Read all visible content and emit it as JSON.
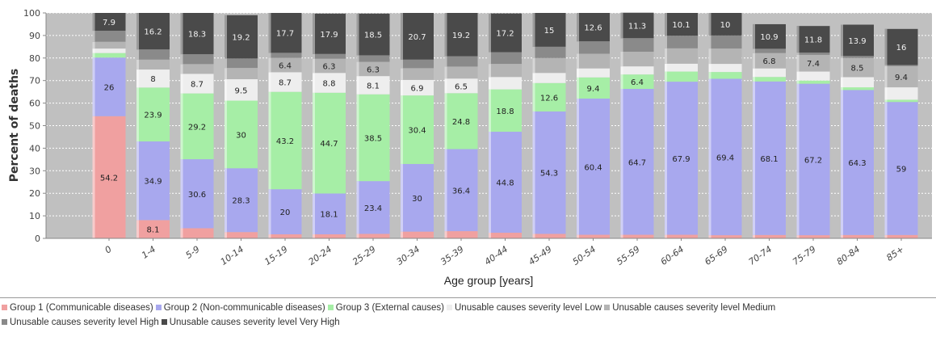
{
  "chart_data": {
    "type": "bar",
    "stacked": true,
    "title": "",
    "xlabel": "Age group [years]",
    "ylabel": "Percent of deaths",
    "ylim": [
      0,
      100
    ],
    "yticks": [
      0,
      10,
      20,
      30,
      40,
      50,
      60,
      70,
      80,
      90,
      100
    ],
    "grid": true,
    "legend_position": "bottom",
    "categories": [
      "0",
      "1-4",
      "5-9",
      "10-14",
      "15-19",
      "20-24",
      "25-29",
      "30-34",
      "35-39",
      "40-44",
      "45-49",
      "50-54",
      "55-59",
      "60-64",
      "65-69",
      "70-74",
      "75-79",
      "80-84",
      "85+"
    ],
    "series": [
      {
        "name": "Group 1 (Communicable diseases)",
        "color": "#f0a0a0",
        "values": [
          54.2,
          8.1,
          4.5,
          2.8,
          1.8,
          1.8,
          2.0,
          3.0,
          3.2,
          2.5,
          2.0,
          1.6,
          1.6,
          1.6,
          1.4,
          1.5,
          1.4,
          1.5,
          1.5
        ],
        "labels": [
          "54.2",
          "8.1",
          "",
          "",
          "",
          "",
          "",
          "",
          "",
          "",
          "",
          "",
          "",
          "",
          "",
          "",
          "",
          "",
          ""
        ]
      },
      {
        "name": "Group 2 (Non-communicable diseases)",
        "color": "#a8a8ee",
        "values": [
          26,
          34.9,
          30.6,
          28.3,
          20,
          18.1,
          23.4,
          30,
          36.4,
          44.8,
          54.3,
          60.4,
          64.7,
          67.9,
          69.4,
          68.1,
          67.2,
          64.3,
          59
        ],
        "labels": [
          "26",
          "34.9",
          "30.6",
          "28.3",
          "20",
          "18.1",
          "23.4",
          "30",
          "36.4",
          "44.8",
          "54.3",
          "60.4",
          "64.7",
          "67.9",
          "69.4",
          "68.1",
          "67.2",
          "64.3",
          "59"
        ]
      },
      {
        "name": "Group 3 (External causes)",
        "color": "#a6eea6",
        "values": [
          2.0,
          23.9,
          29.2,
          30,
          43.2,
          44.7,
          38.5,
          30.4,
          24.8,
          18.8,
          12.6,
          9.4,
          6.4,
          4.5,
          3.0,
          2.0,
          1.4,
          1.2,
          1.0
        ],
        "labels": [
          "",
          "23.9",
          "29.2",
          "30",
          "43.2",
          "44.7",
          "38.5",
          "30.4",
          "24.8",
          "18.8",
          "12.6",
          "9.4",
          "6.4",
          "",
          "",
          "",
          "",
          "",
          ""
        ]
      },
      {
        "name": "Unusable causes severity level Low",
        "color": "#eeeeee",
        "values": [
          2.0,
          8,
          8.7,
          9.5,
          8.7,
          8.8,
          8.1,
          6.9,
          6.5,
          5.5,
          4.5,
          4.0,
          3.6,
          3.5,
          3.6,
          3.8,
          4.0,
          4.5,
          5.5
        ],
        "labels": [
          "",
          "8",
          "8.7",
          "9.5",
          "8.7",
          "8.8",
          "8.1",
          "6.9",
          "6.5",
          "",
          "",
          "",
          "",
          "",
          "",
          "",
          "",
          "",
          ""
        ]
      },
      {
        "name": "Unusable causes severity level Medium",
        "color": "#b4b4b4",
        "values": [
          3.0,
          4.4,
          4.3,
          5.0,
          6.4,
          6.3,
          6.3,
          5.2,
          5.3,
          5.8,
          6.6,
          6.5,
          6.5,
          6.8,
          6.8,
          6.8,
          7.4,
          8.5,
          9.4
        ],
        "labels": [
          "",
          "",
          "",
          "",
          "6.4",
          "6.3",
          "6.3",
          "",
          "",
          "",
          "",
          "",
          "",
          "",
          "",
          "6.8",
          "7.4",
          "8.5",
          "9.4"
        ]
      },
      {
        "name": "Unusable causes severity level High",
        "color": "#8a8a8a",
        "values": [
          4.9,
          4.5,
          4.4,
          4.2,
          2.2,
          2.1,
          2.9,
          3.8,
          4.6,
          5.2,
          5.0,
          5.5,
          6.0,
          5.6,
          5.8,
          1.9,
          1.0,
          0.9,
          0.5
        ],
        "labels": [
          "",
          "",
          "",
          "",
          "",
          "",
          "",
          "",
          "",
          "",
          "",
          "",
          "",
          "",
          "",
          "",
          "",
          "",
          ""
        ]
      },
      {
        "name": "Unusable causes severity level Very High",
        "color": "#4a4a4a",
        "values": [
          7.9,
          16.2,
          18.3,
          19.2,
          17.7,
          17.9,
          18.5,
          20.7,
          19.2,
          17.2,
          15,
          12.6,
          11.3,
          10.1,
          10,
          10.9,
          11.8,
          13.9,
          16
        ],
        "labels": [
          "7.9",
          "16.2",
          "18.3",
          "19.2",
          "17.7",
          "17.9",
          "18.5",
          "20.7",
          "19.2",
          "17.2",
          "15",
          "12.6",
          "11.3",
          "10.1",
          "10",
          "10.9",
          "11.8",
          "13.9",
          "16"
        ]
      }
    ]
  }
}
